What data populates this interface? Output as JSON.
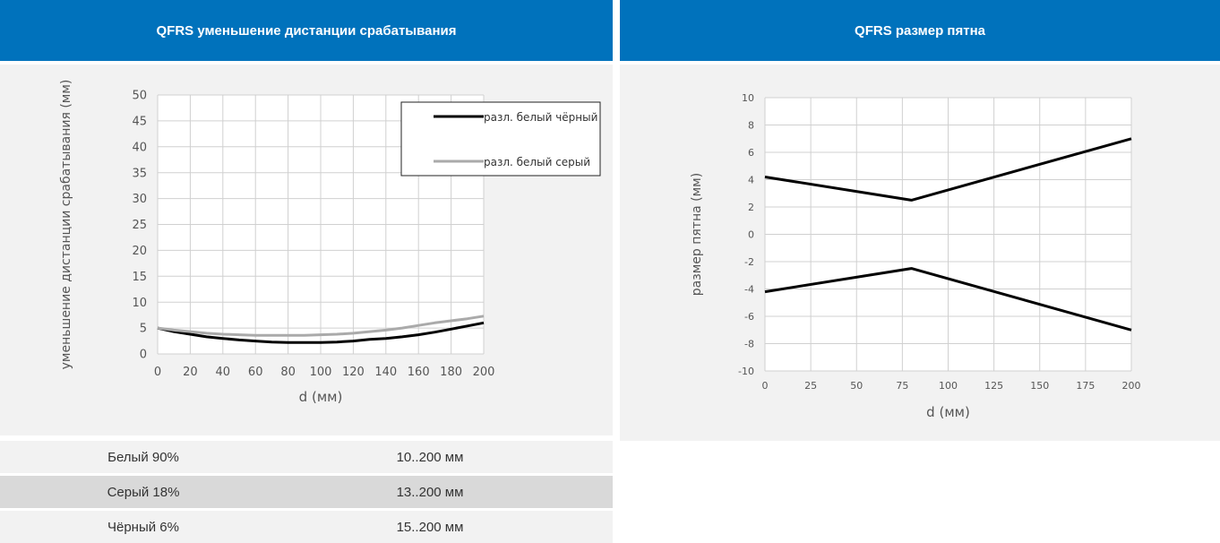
{
  "panels": {
    "left_title": "QFRS уменьшение дистанции срабатывания",
    "right_title": "QFRS размер пятна"
  },
  "specs": [
    {
      "label": "Белый 90%",
      "value": "10..200 мм",
      "bg": "#f2f2f2"
    },
    {
      "label": "Серый 18%",
      "value": "13..200 мм",
      "bg": "#d9d9d9"
    },
    {
      "label": "Чёрный 6%",
      "value": "15..200 мм",
      "bg": "#f2f2f2"
    }
  ],
  "chart_data": [
    {
      "type": "line",
      "xlabel": "d (мм)",
      "ylabel": "уменьшение дистанции срабатывания (мм)",
      "xlim": [
        0,
        200
      ],
      "ylim": [
        0,
        50
      ],
      "xticks": [
        0,
        20,
        40,
        60,
        80,
        100,
        120,
        140,
        160,
        180,
        200
      ],
      "yticks": [
        0,
        5,
        10,
        15,
        20,
        25,
        30,
        35,
        40,
        45,
        50
      ],
      "grid": true,
      "legend": "top-right",
      "series": [
        {
          "name": "разл. белый чёрный",
          "color": "#000000",
          "x": [
            0,
            10,
            20,
            30,
            40,
            50,
            60,
            70,
            80,
            90,
            100,
            110,
            120,
            130,
            140,
            150,
            160,
            170,
            180,
            190,
            200
          ],
          "y": [
            5,
            4.3,
            3.8,
            3.3,
            3.0,
            2.7,
            2.5,
            2.3,
            2.2,
            2.2,
            2.2,
            2.3,
            2.5,
            2.8,
            3.0,
            3.3,
            3.7,
            4.2,
            4.8,
            5.4,
            6.0
          ]
        },
        {
          "name": "разл. белый серый",
          "color": "#aaaaaa",
          "x": [
            0,
            10,
            20,
            30,
            40,
            50,
            60,
            70,
            80,
            90,
            100,
            110,
            120,
            130,
            140,
            150,
            160,
            170,
            180,
            190,
            200
          ],
          "y": [
            5,
            4.6,
            4.3,
            4.0,
            3.8,
            3.7,
            3.6,
            3.6,
            3.6,
            3.6,
            3.7,
            3.8,
            4.0,
            4.3,
            4.6,
            5.0,
            5.5,
            6.0,
            6.4,
            6.8,
            7.3
          ]
        }
      ]
    },
    {
      "type": "line",
      "xlabel": "d (мм)",
      "ylabel": "размер пятна (мм)",
      "xlim": [
        0,
        200
      ],
      "ylim": [
        -10,
        10
      ],
      "xticks": [
        0,
        25,
        50,
        75,
        100,
        125,
        150,
        175,
        200
      ],
      "yticks": [
        -10,
        -8,
        -6,
        -4,
        -2,
        0,
        2,
        4,
        6,
        8,
        10
      ],
      "grid": true,
      "series": [
        {
          "color": "#000000",
          "x": [
            0,
            80,
            200
          ],
          "y": [
            4.2,
            2.5,
            7.0
          ]
        },
        {
          "color": "#000000",
          "x": [
            0,
            80,
            200
          ],
          "y": [
            -4.2,
            -2.5,
            -7.0
          ]
        }
      ]
    }
  ]
}
